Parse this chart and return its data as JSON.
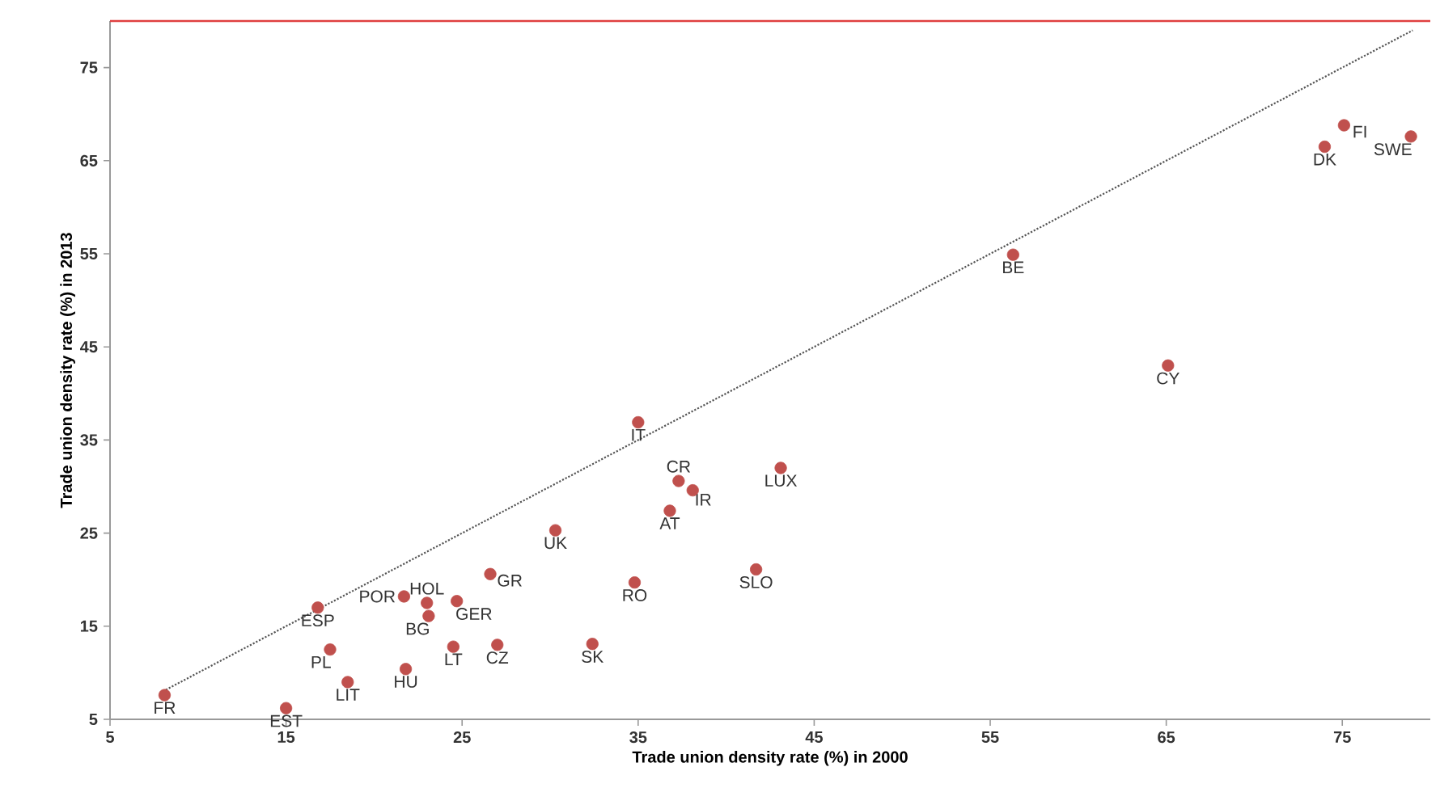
{
  "chart_data": {
    "type": "scatter",
    "xlabel": "Trade union density rate (%) in 2000",
    "ylabel": "Trade union density rate (%) in 2013",
    "xlim": [
      5,
      80
    ],
    "ylim": [
      5,
      80
    ],
    "xticks": [
      5,
      15,
      25,
      35,
      45,
      55,
      65,
      75
    ],
    "yticks": [
      5,
      15,
      25,
      35,
      45,
      55,
      65,
      75
    ],
    "grid": false,
    "series": [
      {
        "color": "#c0504d",
        "marker": "circle",
        "x": [
          8.1,
          15.0,
          16.8,
          17.5,
          18.5,
          21.7,
          21.8,
          23.0,
          23.1,
          24.5,
          24.7,
          26.6,
          27.0,
          30.3,
          32.4,
          34.8,
          35.0,
          36.8,
          37.3,
          38.1,
          41.7,
          43.1,
          56.3,
          65.1,
          74.0,
          75.1,
          78.9
        ],
        "values": [
          7.6,
          6.2,
          17.0,
          12.5,
          9.0,
          18.2,
          10.4,
          17.5,
          16.1,
          12.8,
          17.7,
          20.6,
          13.0,
          25.3,
          13.1,
          19.7,
          36.9,
          27.4,
          30.6,
          29.6,
          21.1,
          32.0,
          54.9,
          43.0,
          66.5,
          68.8,
          67.6
        ]
      },
      {
        "type": "line",
        "color": "#555555",
        "marker": "none",
        "line_style": "dotted",
        "x": [
          8,
          79
        ],
        "values": [
          8,
          79
        ]
      }
    ],
    "ref_lines": [
      {
        "axis": "y",
        "value": 80,
        "color": "#e04040"
      }
    ],
    "annotations": [
      {
        "text": "FR",
        "x": 8.1,
        "y": 7.6
      },
      {
        "text": "EST",
        "x": 15.0,
        "y": 6.2
      },
      {
        "text": "ESP",
        "x": 16.8,
        "y": 17.0
      },
      {
        "text": "PL",
        "x": 17.5,
        "y": 12.5
      },
      {
        "text": "LIT",
        "x": 18.5,
        "y": 9.0
      },
      {
        "text": "POR",
        "x": 21.7,
        "y": 18.2
      },
      {
        "text": "HU",
        "x": 21.8,
        "y": 10.4
      },
      {
        "text": "HOL",
        "x": 23.0,
        "y": 17.5
      },
      {
        "text": "BG",
        "x": 23.1,
        "y": 16.1
      },
      {
        "text": "LT",
        "x": 24.5,
        "y": 12.8
      },
      {
        "text": "GER",
        "x": 24.7,
        "y": 17.7
      },
      {
        "text": "GR",
        "x": 26.6,
        "y": 20.6
      },
      {
        "text": "CZ",
        "x": 27.0,
        "y": 13.0
      },
      {
        "text": "UK",
        "x": 30.3,
        "y": 25.3
      },
      {
        "text": "SK",
        "x": 32.4,
        "y": 13.1
      },
      {
        "text": "RO",
        "x": 34.8,
        "y": 19.7
      },
      {
        "text": "IT",
        "x": 35.0,
        "y": 36.9
      },
      {
        "text": "AT",
        "x": 36.8,
        "y": 27.4
      },
      {
        "text": "CR",
        "x": 37.3,
        "y": 30.6
      },
      {
        "text": "IR",
        "x": 38.1,
        "y": 29.6
      },
      {
        "text": "SLO",
        "x": 41.7,
        "y": 21.1
      },
      {
        "text": "LUX",
        "x": 43.1,
        "y": 32.0
      },
      {
        "text": "BE",
        "x": 56.3,
        "y": 54.9
      },
      {
        "text": "CY",
        "x": 65.1,
        "y": 43.0
      },
      {
        "text": "DK",
        "x": 74.0,
        "y": 66.5
      },
      {
        "text": "FI",
        "x": 75.1,
        "y": 68.8
      },
      {
        "text": "SWE",
        "x": 78.9,
        "y": 67.6
      }
    ]
  }
}
